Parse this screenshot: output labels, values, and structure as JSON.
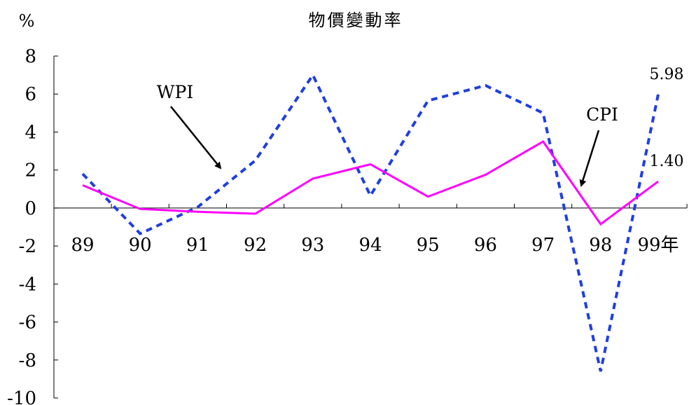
{
  "chart_data": {
    "type": "line",
    "title": "物價變動率",
    "y_unit": "%",
    "categories": [
      "89",
      "90",
      "91",
      "92",
      "93",
      "94",
      "95",
      "96",
      "97",
      "98",
      "99年"
    ],
    "ylim": [
      -10,
      8
    ],
    "yticks": [
      8,
      6,
      4,
      2,
      0,
      -2,
      -4,
      -6,
      -8,
      -10
    ],
    "grid": false,
    "series": [
      {
        "name": "WPI",
        "style": "dashed",
        "color": "#1f3fe0",
        "values": [
          1.8,
          -1.35,
          0.05,
          2.5,
          7.0,
          0.65,
          5.65,
          6.45,
          5.0,
          -8.6,
          5.98
        ],
        "end_label": "5.98"
      },
      {
        "name": "CPI",
        "style": "solid",
        "color": "#ff00ff",
        "values": [
          1.2,
          -0.05,
          -0.2,
          -0.3,
          1.55,
          2.3,
          0.6,
          1.75,
          3.5,
          -0.85,
          1.4
        ],
        "end_label": "1.40"
      }
    ]
  }
}
